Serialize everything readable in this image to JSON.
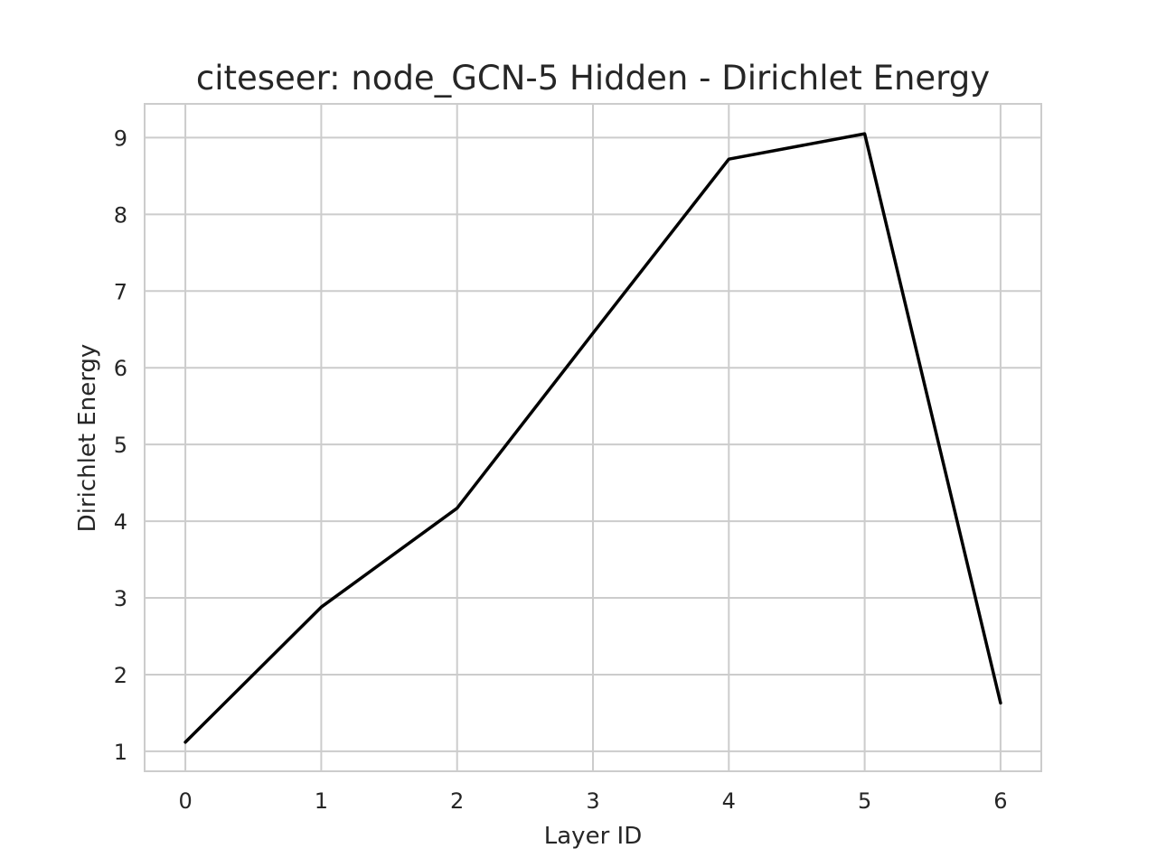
{
  "chart_data": {
    "type": "line",
    "title": "citeseer: node_GCN-5 Hidden - Dirichlet Energy",
    "xlabel": "Layer ID",
    "ylabel": "Dirichlet Energy",
    "x": [
      0,
      1,
      2,
      3,
      4,
      5,
      6
    ],
    "series": [
      {
        "values": [
          1.12,
          2.88,
          4.17,
          6.45,
          8.72,
          9.05,
          1.63
        ],
        "color": "#000000"
      }
    ],
    "xticks": [
      "0",
      "1",
      "2",
      "3",
      "4",
      "5",
      "6"
    ],
    "yticks": [
      "1",
      "2",
      "3",
      "4",
      "5",
      "6",
      "7",
      "8",
      "9"
    ],
    "xlim": [
      -0.3,
      6.3
    ],
    "ylim": [
      0.74,
      9.44
    ],
    "grid": true
  }
}
